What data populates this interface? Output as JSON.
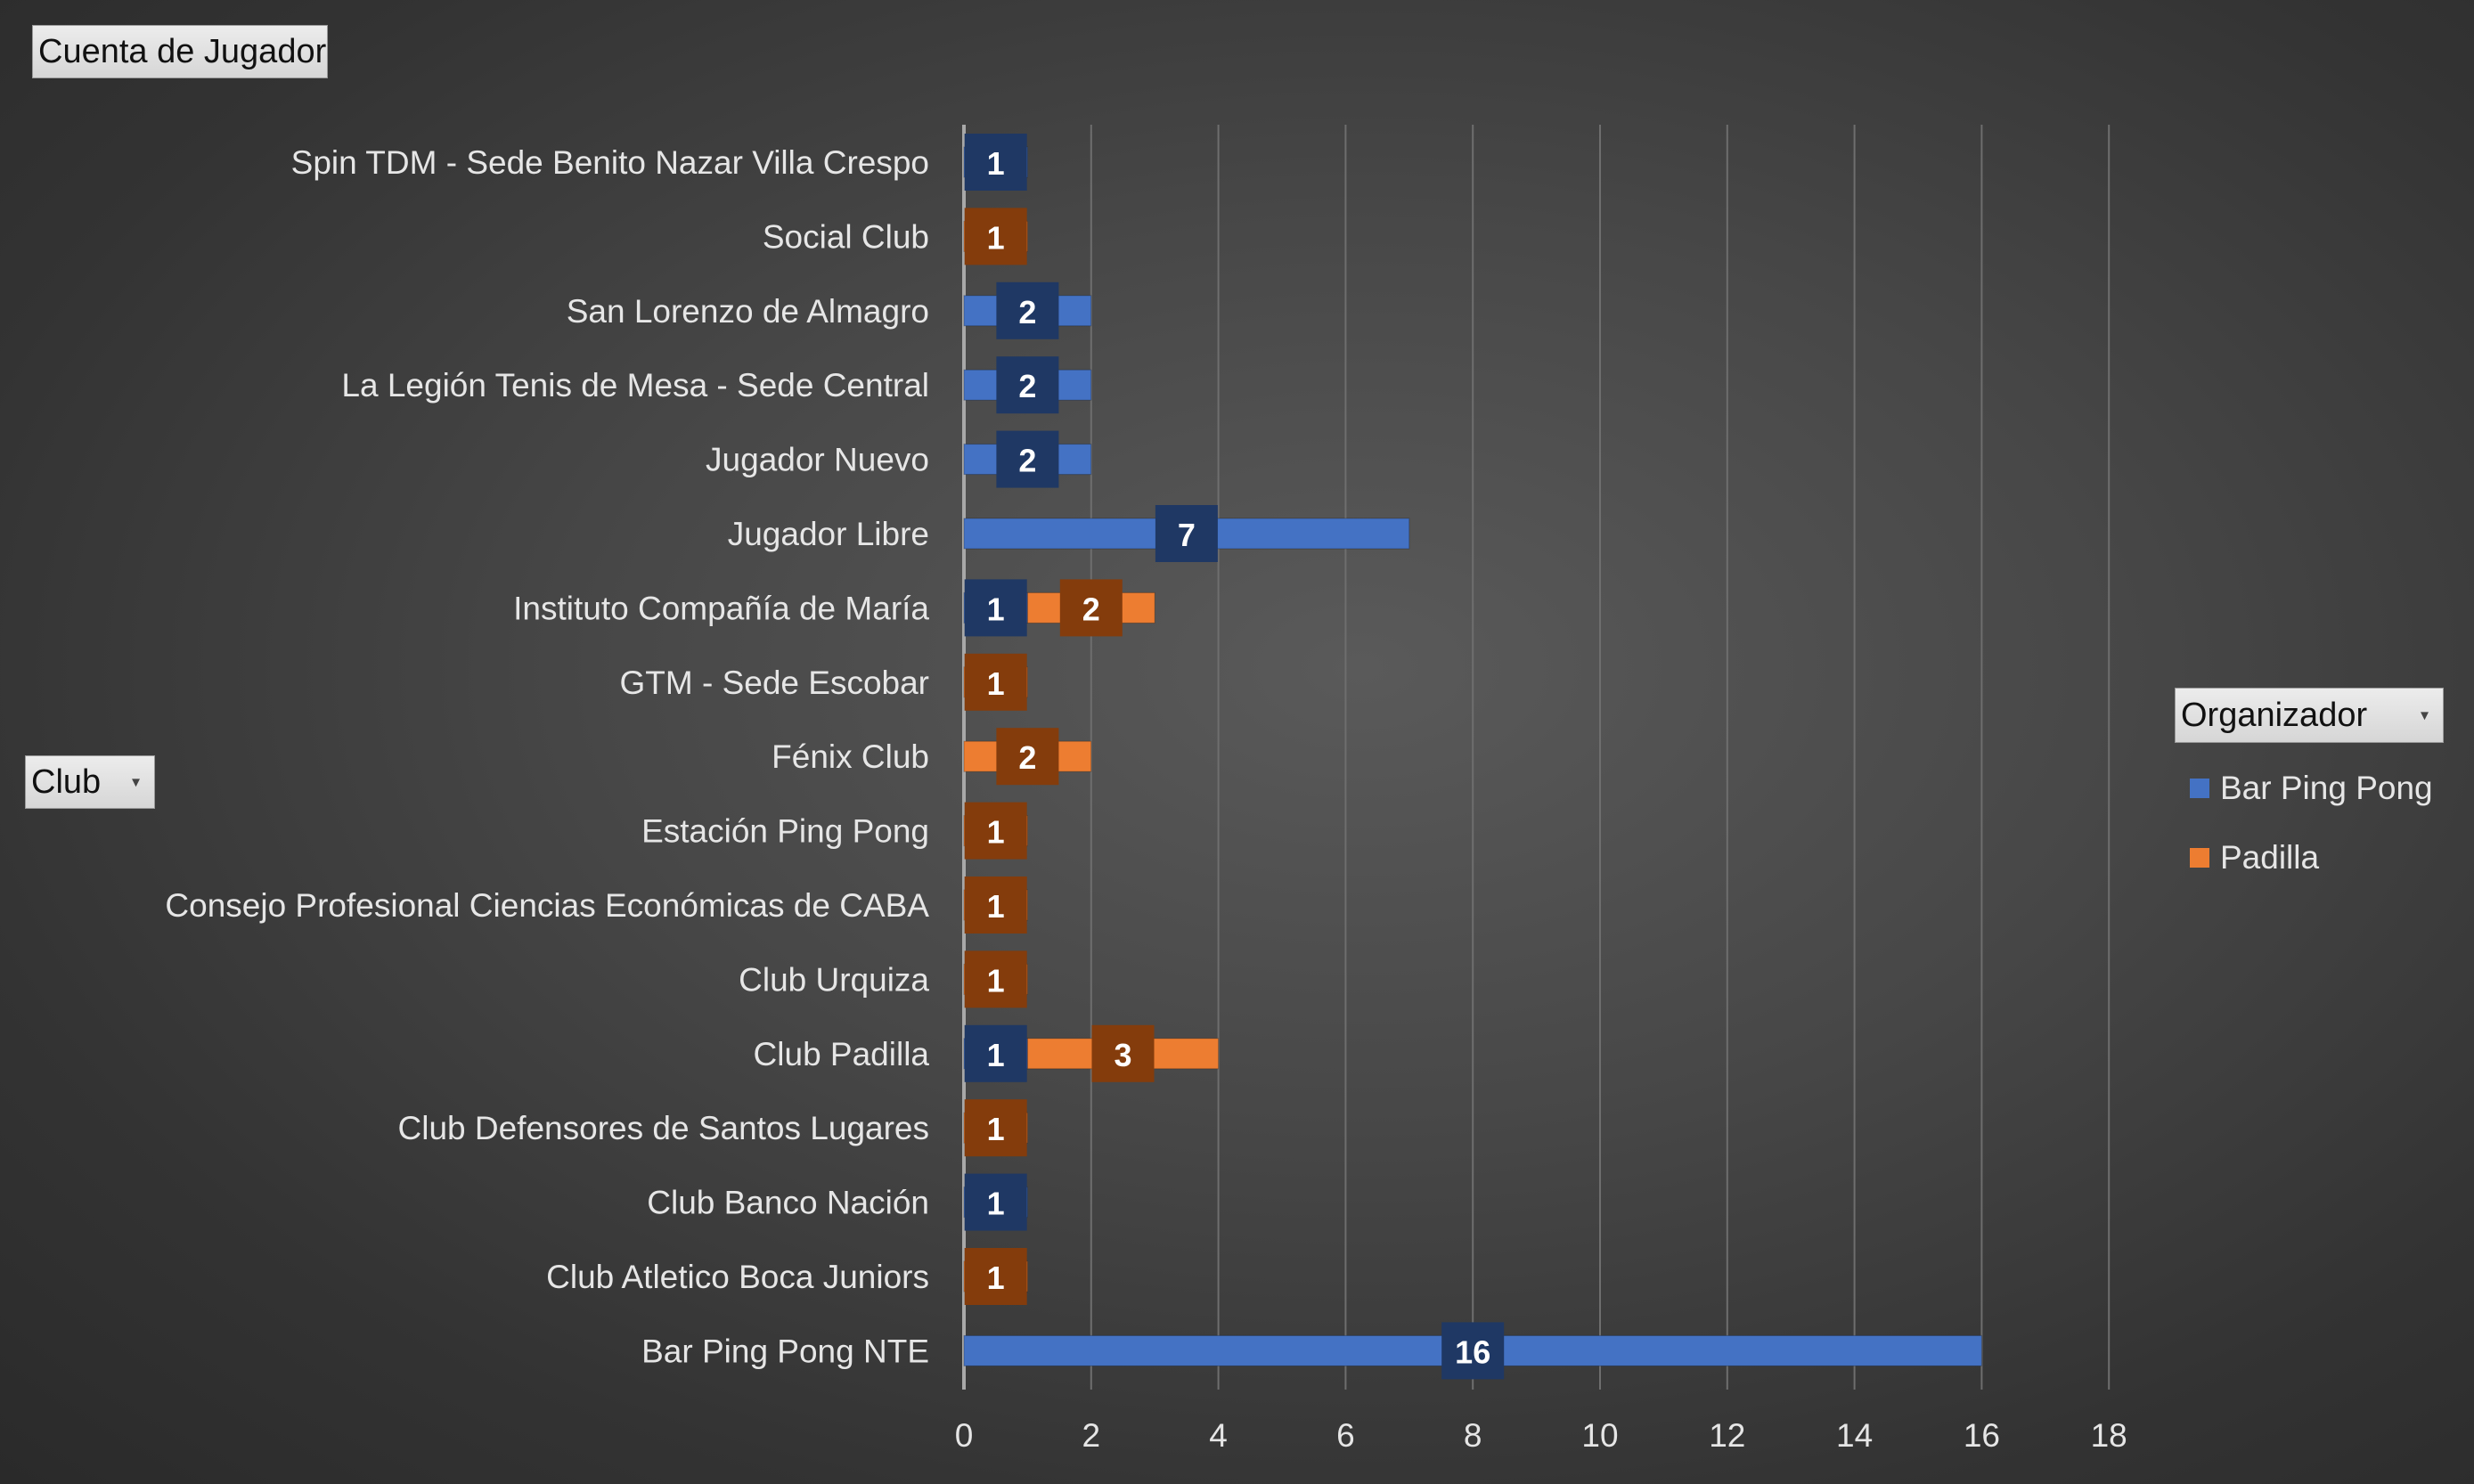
{
  "fields": {
    "value_label": "Cuenta de Jugador",
    "row_label": "Club",
    "legend_label": "Organizador"
  },
  "colors": {
    "bar_ping_pong": "#4472c4",
    "padilla": "#ed7d31",
    "bar_ping_pong_label_bg": "#1f3864",
    "padilla_label_bg": "#843c0c"
  },
  "chart_data": {
    "type": "bar",
    "orientation": "horizontal",
    "stacked": true,
    "categories": [
      "Spin TDM - Sede Benito Nazar Villa Crespo",
      "Social Club",
      "San Lorenzo de Almagro",
      "La Legión Tenis de Mesa - Sede Central",
      "Jugador Nuevo",
      "Jugador Libre",
      "Instituto Compañía de María",
      "GTM - Sede Escobar",
      "Fénix Club",
      "Estación Ping Pong",
      "Consejo Profesional Ciencias Económicas de CABA",
      "Club Urquiza",
      "Club Padilla",
      "Club Defensores de Santos Lugares",
      "Club Banco Nación",
      "Club Atletico Boca Juniors",
      "Bar Ping Pong NTE"
    ],
    "series": [
      {
        "name": "Bar Ping Pong",
        "color": "#4472c4",
        "label_bg": "#1f3864",
        "values": [
          1,
          null,
          2,
          2,
          2,
          7,
          1,
          null,
          null,
          null,
          null,
          null,
          1,
          null,
          1,
          null,
          16
        ]
      },
      {
        "name": "Padilla",
        "color": "#ed7d31",
        "label_bg": "#843c0c",
        "values": [
          null,
          1,
          null,
          null,
          null,
          null,
          2,
          1,
          2,
          1,
          1,
          1,
          3,
          1,
          null,
          1,
          null
        ]
      }
    ],
    "xlim": [
      0,
      18
    ],
    "xticks": [
      0,
      2,
      4,
      6,
      8,
      10,
      12,
      14,
      16,
      18
    ],
    "grid": true,
    "legend_position": "right"
  }
}
